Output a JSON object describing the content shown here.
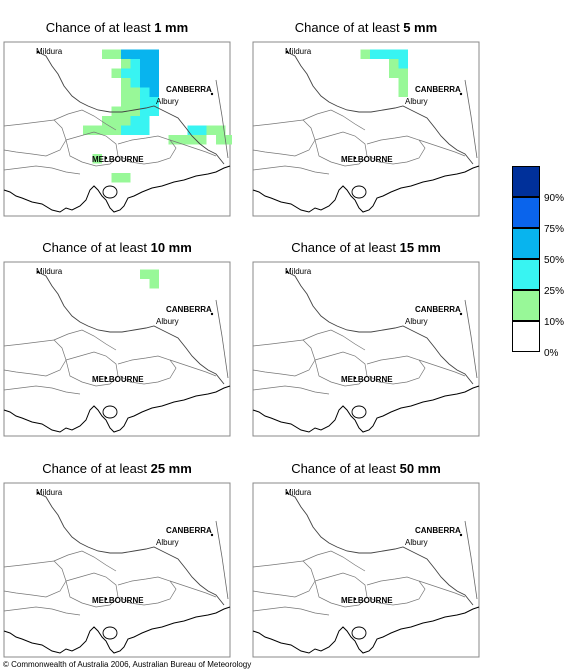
{
  "panels": [
    {
      "prefix": "Chance of at least",
      "amount": "1 mm",
      "cells": [
        {
          "c": 4,
          "r": 1,
          "lvl": 3
        },
        {
          "c": 5,
          "r": 1,
          "lvl": 3
        },
        {
          "c": 6,
          "r": 1,
          "lvl": 3
        },
        {
          "c": 7,
          "r": 1,
          "lvl": 3
        },
        {
          "c": 3,
          "r": 1,
          "lvl": 1
        },
        {
          "c": 2,
          "r": 1,
          "lvl": 1
        },
        {
          "c": 4,
          "r": 2,
          "lvl": 1
        },
        {
          "c": 5,
          "r": 2,
          "lvl": 2
        },
        {
          "c": 6,
          "r": 2,
          "lvl": 3
        },
        {
          "c": 7,
          "r": 2,
          "lvl": 3
        },
        {
          "c": 3,
          "r": 3,
          "lvl": 1
        },
        {
          "c": 4,
          "r": 3,
          "lvl": 2
        },
        {
          "c": 5,
          "r": 3,
          "lvl": 2
        },
        {
          "c": 6,
          "r": 3,
          "lvl": 3
        },
        {
          "c": 7,
          "r": 3,
          "lvl": 3
        },
        {
          "c": 4,
          "r": 4,
          "lvl": 1
        },
        {
          "c": 5,
          "r": 4,
          "lvl": 2
        },
        {
          "c": 6,
          "r": 4,
          "lvl": 3
        },
        {
          "c": 7,
          "r": 4,
          "lvl": 3
        },
        {
          "c": 4,
          "r": 5,
          "lvl": 1
        },
        {
          "c": 5,
          "r": 5,
          "lvl": 1
        },
        {
          "c": 6,
          "r": 5,
          "lvl": 2
        },
        {
          "c": 7,
          "r": 5,
          "lvl": 3
        },
        {
          "c": 4,
          "r": 6,
          "lvl": 1
        },
        {
          "c": 5,
          "r": 6,
          "lvl": 1
        },
        {
          "c": 6,
          "r": 6,
          "lvl": 2
        },
        {
          "c": 7,
          "r": 6,
          "lvl": 2
        },
        {
          "c": 3,
          "r": 7,
          "lvl": 1
        },
        {
          "c": 4,
          "r": 7,
          "lvl": 1
        },
        {
          "c": 5,
          "r": 7,
          "lvl": 1
        },
        {
          "c": 6,
          "r": 7,
          "lvl": 2
        },
        {
          "c": 7,
          "r": 7,
          "lvl": 2
        },
        {
          "c": 2,
          "r": 8,
          "lvl": 1
        },
        {
          "c": 3,
          "r": 8,
          "lvl": 1
        },
        {
          "c": 4,
          "r": 8,
          "lvl": 1
        },
        {
          "c": 5,
          "r": 8,
          "lvl": 2
        },
        {
          "c": 6,
          "r": 8,
          "lvl": 2
        },
        {
          "c": 0,
          "r": 9,
          "lvl": 1
        },
        {
          "c": 1,
          "r": 9,
          "lvl": 1
        },
        {
          "c": 2,
          "r": 9,
          "lvl": 1
        },
        {
          "c": 3,
          "r": 9,
          "lvl": 1
        },
        {
          "c": 4,
          "r": 9,
          "lvl": 2
        },
        {
          "c": 5,
          "r": 9,
          "lvl": 2
        },
        {
          "c": 6,
          "r": 9,
          "lvl": 2
        },
        {
          "c": 11,
          "r": 9,
          "lvl": 2
        },
        {
          "c": 12,
          "r": 9,
          "lvl": 2
        },
        {
          "c": 13,
          "r": 9,
          "lvl": 1
        },
        {
          "c": 9,
          "r": 10,
          "lvl": 1
        },
        {
          "c": 10,
          "r": 10,
          "lvl": 1
        },
        {
          "c": 11,
          "r": 10,
          "lvl": 1
        },
        {
          "c": 14,
          "r": 10,
          "lvl": 1
        },
        {
          "c": 15,
          "r": 10,
          "lvl": 1
        },
        {
          "c": 14,
          "r": 9,
          "lvl": 1
        },
        {
          "c": 12,
          "r": 10,
          "lvl": 1
        },
        {
          "c": 1,
          "r": 12,
          "lvl": 1
        },
        {
          "c": 3,
          "r": 14,
          "lvl": 1
        },
        {
          "c": 4,
          "r": 14,
          "lvl": 1
        }
      ]
    },
    {
      "prefix": "Chance of at least",
      "amount": "5 mm",
      "cells": [
        {
          "c": 4,
          "r": 1,
          "lvl": 2
        },
        {
          "c": 5,
          "r": 1,
          "lvl": 2
        },
        {
          "c": 6,
          "r": 1,
          "lvl": 2
        },
        {
          "c": 7,
          "r": 1,
          "lvl": 2
        },
        {
          "c": 3,
          "r": 1,
          "lvl": 1
        },
        {
          "c": 6,
          "r": 2,
          "lvl": 1
        },
        {
          "c": 7,
          "r": 2,
          "lvl": 2
        },
        {
          "c": 6,
          "r": 3,
          "lvl": 1
        },
        {
          "c": 7,
          "r": 3,
          "lvl": 1
        },
        {
          "c": 7,
          "r": 4,
          "lvl": 1
        },
        {
          "c": 7,
          "r": 5,
          "lvl": 1
        }
      ]
    },
    {
      "prefix": "Chance of at least",
      "amount": "10 mm",
      "cells": [
        {
          "c": 7,
          "r": 1,
          "lvl": 1
        },
        {
          "c": 6,
          "r": 1,
          "lvl": 1
        },
        {
          "c": 7,
          "r": 2,
          "lvl": 1
        }
      ]
    },
    {
      "prefix": "Chance of at least",
      "amount": "15 mm",
      "cells": []
    },
    {
      "prefix": "Chance of at least",
      "amount": "25 mm",
      "cells": []
    },
    {
      "prefix": "Chance of at least",
      "amount": "50 mm",
      "cells": []
    }
  ],
  "places": {
    "mildura": "Mildura",
    "canberra": "CANBERRA",
    "albury": "Albury",
    "melbourne": "MELBOURNE"
  },
  "legend": {
    "labels": [
      "90%",
      "75%",
      "50%",
      "25%",
      "10%",
      "0%"
    ],
    "colors": [
      "#00309a",
      "#0a64ec",
      "#08b4ee",
      "#38f4f2",
      "#98f898",
      "#ffffff"
    ]
  },
  "copyright": "© Commonwealth of Australia 2006, Australian Bureau of Meteorology"
}
